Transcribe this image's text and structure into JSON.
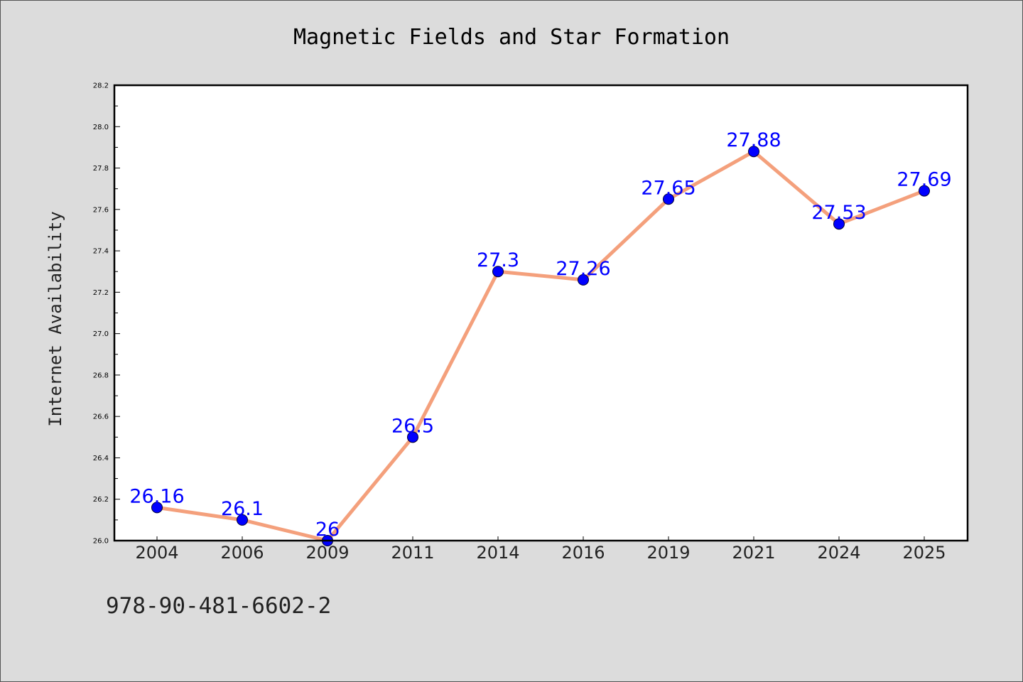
{
  "chart_data": {
    "type": "line",
    "title": "Magnetic Fields and Star Formation",
    "xlabel": "",
    "ylabel": "Internet Availability",
    "categories": [
      "2004",
      "2006",
      "2009",
      "2011",
      "2014",
      "2016",
      "2019",
      "2021",
      "2024",
      "2025"
    ],
    "series": [
      {
        "values": [
          26.16,
          26.1,
          26.0,
          26.5,
          27.3,
          27.26,
          27.65,
          27.88,
          27.53,
          27.69
        ],
        "line_color": "#f4a07c",
        "marker_color": "#0000ff",
        "show_data_labels": true
      }
    ],
    "ylim": [
      26.0,
      28.2
    ],
    "y_ticks": [
      "26.0",
      "26.2",
      "26.4",
      "26.6",
      "26.8",
      "27.0",
      "27.2",
      "27.4",
      "27.6",
      "27.8",
      "28.0",
      "28.2"
    ],
    "grid": false,
    "legend": "none",
    "label_color": "#0000ff"
  },
  "footer": {
    "code": "978-90-481-6602-2"
  }
}
